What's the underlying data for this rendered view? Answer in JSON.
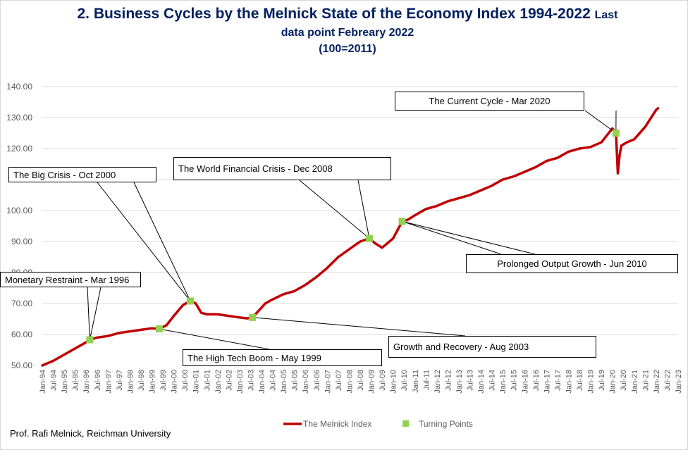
{
  "header": {
    "title_main": "2.  Business Cycles by the Melnick State of the Economy Index 1994-2022",
    "title_last": "Last",
    "subtitle": "data point Febreary 2022",
    "base": "(100=2011)"
  },
  "footer": {
    "credit": "Prof. Rafi Melnick, Reichman University"
  },
  "colors": {
    "series": "#c00000",
    "points": "#92d050",
    "title": "#002060",
    "grid": "#d9d9d9"
  },
  "chart_data": {
    "type": "line",
    "ylim": [
      50,
      140
    ],
    "yticks": [
      "50.00",
      "60.00",
      "70.00",
      "80.00",
      "90.00",
      "100.00",
      "110.00",
      "120.00",
      "130.00",
      "140.00"
    ],
    "xticks": [
      "Jan-94",
      "Jul-94",
      "Jan-95",
      "Jul-95",
      "Jan-96",
      "Jul-96",
      "Jan-97",
      "Jul-97",
      "Jan-98",
      "Jul-98",
      "Jan-99",
      "Jul-99",
      "Jan-00",
      "Jul-00",
      "Jan-01",
      "Jul-01",
      "Jan-02",
      "Jul-02",
      "Jan-03",
      "Jul-03",
      "Jan-04",
      "Jul-04",
      "Jan-05",
      "Jul-05",
      "Jan-06",
      "Jul-06",
      "Jan-07",
      "Jul-07",
      "Jan-08",
      "Jul-08",
      "Jan-09",
      "Jul-09",
      "Jan-10",
      "Jul-10",
      "Jan-11",
      "Jul-11",
      "Jan-12",
      "Jul-12",
      "Jan-13",
      "Jul-13",
      "Jan-14",
      "Jul-14",
      "Jan-15",
      "Jul-15",
      "Jan-16",
      "Jul-16",
      "Jan-17",
      "Jul-17",
      "Jan-18",
      "Jul-18",
      "Jan-19",
      "Jul-19",
      "Jan-20",
      "Jul-20",
      "Jan-21",
      "Jul-21",
      "Jan-22",
      "Jul-22",
      "Jan-23"
    ],
    "legend_position": "bottom",
    "series": [
      {
        "name": "The Melnick Index",
        "x": [
          "1994-01",
          "1994-07",
          "1995-01",
          "1995-07",
          "1996-01",
          "1996-03",
          "1996-07",
          "1997-01",
          "1997-07",
          "1998-01",
          "1998-07",
          "1999-01",
          "1999-05",
          "1999-09",
          "2000-01",
          "2000-06",
          "2000-10",
          "2001-01",
          "2001-04",
          "2001-07",
          "2002-01",
          "2002-07",
          "2003-01",
          "2003-05",
          "2003-08",
          "2003-12",
          "2004-03",
          "2004-06",
          "2005-01",
          "2005-07",
          "2006-01",
          "2006-07",
          "2007-01",
          "2007-07",
          "2008-01",
          "2008-07",
          "2008-12",
          "2009-03",
          "2009-07",
          "2010-01",
          "2010-06",
          "2010-09",
          "2011-01",
          "2011-07",
          "2012-01",
          "2012-07",
          "2013-01",
          "2013-07",
          "2014-01",
          "2014-07",
          "2015-01",
          "2015-07",
          "2016-01",
          "2016-07",
          "2017-01",
          "2017-07",
          "2018-01",
          "2018-07",
          "2019-01",
          "2019-07",
          "2020-01",
          "2020-03",
          "2020-04",
          "2020-05",
          "2020-06",
          "2020-09",
          "2021-01",
          "2021-07",
          "2022-01",
          "2022-02"
        ],
        "y": [
          50.0,
          51.5,
          53.5,
          55.5,
          57.5,
          58.3,
          59.0,
          59.5,
          60.5,
          61.0,
          61.5,
          62.0,
          61.8,
          63.0,
          66.0,
          69.5,
          70.8,
          70.0,
          67.0,
          66.5,
          66.5,
          66.0,
          65.5,
          65.2,
          65.5,
          68.0,
          70.0,
          71.0,
          73.0,
          74.0,
          76.0,
          78.5,
          81.5,
          85.0,
          87.5,
          90.0,
          91.0,
          89.5,
          88.0,
          91.0,
          96.5,
          97.0,
          98.5,
          100.5,
          101.5,
          103.0,
          104.0,
          105.0,
          106.5,
          108.0,
          110.0,
          111.0,
          112.5,
          114.0,
          116.0,
          117.0,
          119.0,
          120.0,
          120.5,
          122.0,
          126.5,
          125.0,
          112.0,
          118.0,
          121.0,
          122.0,
          123.0,
          127.0,
          132.5,
          133.0
        ]
      }
    ],
    "turning_points": {
      "name": "Turning Points",
      "points": [
        {
          "date": "1996-03",
          "value": 58.3
        },
        {
          "date": "1999-05",
          "value": 61.8
        },
        {
          "date": "2000-10",
          "value": 70.8
        },
        {
          "date": "2003-08",
          "value": 65.5
        },
        {
          "date": "2008-12",
          "value": 91.0
        },
        {
          "date": "2010-06",
          "value": 96.5
        },
        {
          "date": "2020-03",
          "value": 125.0
        }
      ]
    },
    "annotations": [
      {
        "text": "Monetary Restraint - Mar 1996"
      },
      {
        "text": "The High Tech Boom - May 1999"
      },
      {
        "text": "The Big Crisis - Oct 2000"
      },
      {
        "text": "Growth and Recovery - Aug 2003"
      },
      {
        "text": "The World Financial Crisis - Dec 2008"
      },
      {
        "text": "Prolonged Output Growth - Jun 2010"
      },
      {
        "text": "The Current Cycle - Mar 2020"
      }
    ]
  }
}
